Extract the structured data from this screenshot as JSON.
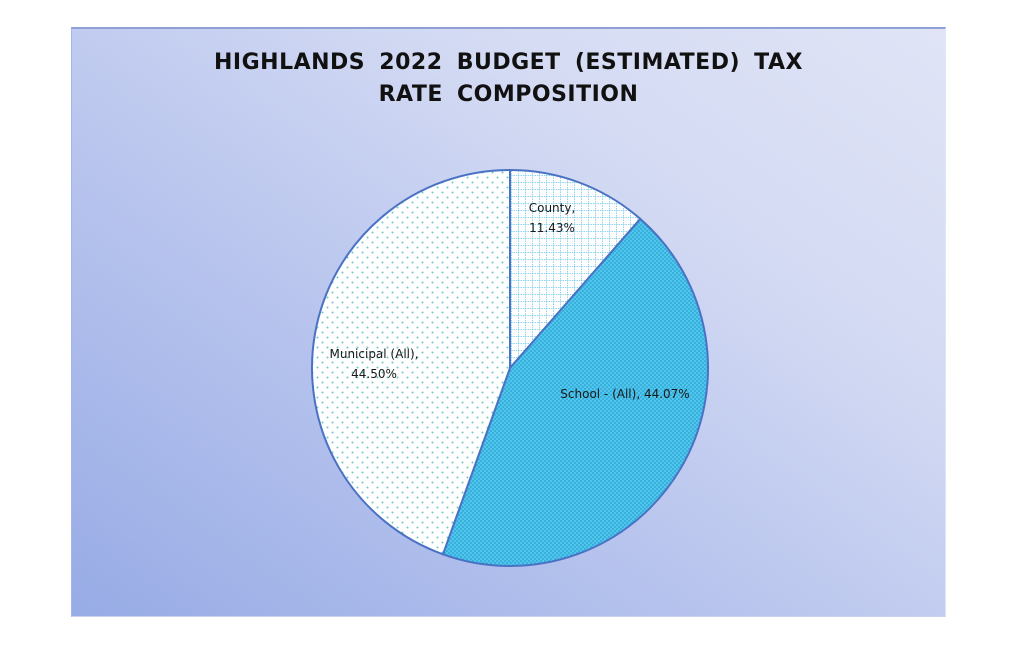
{
  "chart_data": {
    "type": "pie",
    "title": "HIGHLANDS 2022 BUDGET (ESTIMATED) TAX RATE COMPOSITION",
    "title_lines": [
      "HIGHLANDS 2022 BUDGET (ESTIMATED) TAX",
      "RATE COMPOSITION"
    ],
    "categories": [
      "County",
      "School - (All)",
      "Municipal (All)"
    ],
    "values": [
      11.43,
      44.07,
      44.5
    ],
    "unit": "%",
    "data_labels": [
      {
        "lines": [
          "County,",
          "11.43%"
        ]
      },
      {
        "lines": [
          "School - (All), 44.07%"
        ]
      },
      {
        "lines": [
          "Municipal (All),",
          "44.50%"
        ]
      }
    ],
    "start_angle_deg": 0,
    "direction": "clockwise",
    "legend": "none",
    "grid": false,
    "colors": {
      "County": "#ffffff",
      "School - (All)": "#4fc6ec",
      "Municipal (All)": "#ffffff",
      "outline": "#4a72c4",
      "background_start": "#97abe5",
      "background_end": "#e0e4f6"
    },
    "fill_patterns": {
      "County": "light-blue grid",
      "School - (All)": "dense dot pattern on cyan",
      "Municipal (All)": "sparse teal dots on white"
    }
  }
}
